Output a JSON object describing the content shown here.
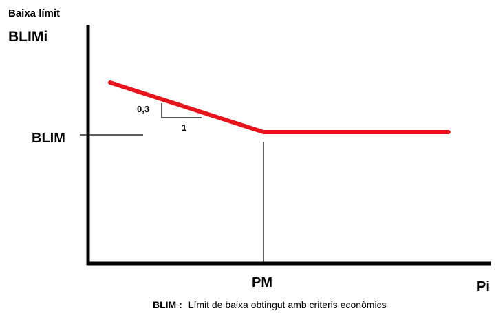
{
  "y_axis": {
    "title_line1": "Baixa límit",
    "title_line2": "BLIMi"
  },
  "x_axis": {
    "label": "Pi"
  },
  "markers": {
    "y_level": "BLIM",
    "x_breakpoint": "PM"
  },
  "slope_triangle": {
    "rise": "0,3",
    "run": "1"
  },
  "caption": {
    "term": "BLIM",
    "separator": ":",
    "definition": "Límit de baixa obtingut amb criteris econòmics"
  },
  "colors": {
    "curve": "#e8141c",
    "axes": "#000000",
    "guides": "#000000"
  }
}
